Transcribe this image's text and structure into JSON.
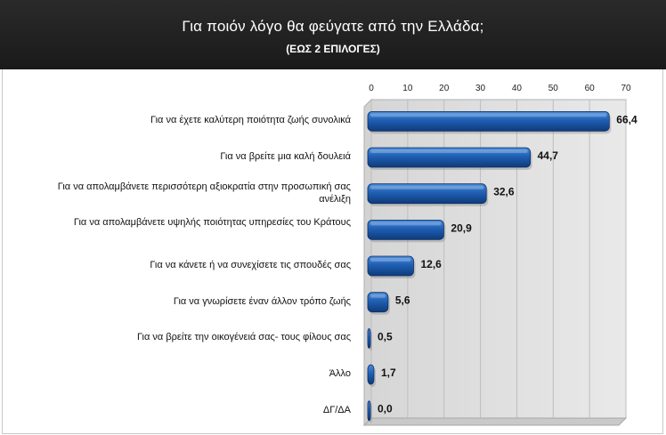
{
  "header": {
    "title": "Για ποιόν λόγο θα φεύγατε από την Ελλάδα;",
    "subtitle": "(ΕΩΣ 2 ΕΠΙΛΟΓΕΣ)"
  },
  "colors": {
    "header_bg": "#1e1e1e",
    "bar": "#1f5fb3",
    "bar_light": "#4a8ad9",
    "bar_dark": "#0f3a7a",
    "wall": "#e9e9e9",
    "floor": "#c9c9c9"
  },
  "chart_data": {
    "type": "bar",
    "orientation": "horizontal",
    "title": "Για ποιόν λόγο θα φεύγατε από την Ελλάδα;",
    "subtitle": "(ΕΩΣ 2 ΕΠΙΛΟΓΕΣ)",
    "categories": [
      "Για να έχετε καλύτερη ποιότητα ζωής συνολικά",
      "Για να βρείτε μια καλή δουλειά",
      "Για να απολαμβάνετε περισσότερη αξιοκρατία στην προσωπική σας ανέλιξη",
      "Για να απολαμβάνετε υψηλής ποιότητας υπηρεσίες του Κράτους",
      "Για να κάνετε ή να συνεχίσετε τις σπουδές σας",
      "Για να γνωρίσετε έναν άλλον τρόπο ζωής",
      "Για να βρείτε την οικογένειά σας- τους φίλους σας",
      "Άλλο",
      "ΔΓ/ΔΑ"
    ],
    "values": [
      66.4,
      44.7,
      32.6,
      20.9,
      12.6,
      5.6,
      0.5,
      1.7,
      0.0
    ],
    "value_labels": [
      "66,4",
      "44,7",
      "32,6",
      "20,9",
      "12,6",
      "5,6",
      "0,5",
      "1,7",
      "0,0"
    ],
    "xlim": [
      0,
      70
    ],
    "xticks": [
      0,
      10,
      20,
      30,
      40,
      50,
      60,
      70
    ],
    "xtick_labels": [
      "0",
      "10",
      "20",
      "30",
      "40",
      "50",
      "60",
      "70"
    ],
    "xaxis_position": "top",
    "grid": true,
    "legend": "none"
  }
}
